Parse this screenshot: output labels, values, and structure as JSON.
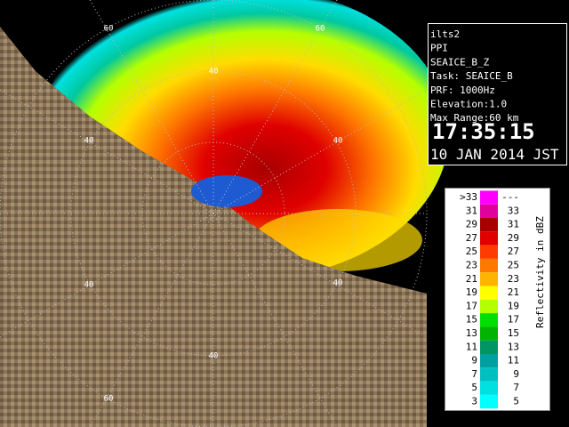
{
  "info": {
    "lines": [
      "ilts2",
      "PPI",
      "SEAICE_B_Z",
      "Task: SEAICE_B",
      "PRF: 1000Hz",
      "Elevation:1.0",
      "Max Range:60 km"
    ],
    "time": "17:35:15",
    "date": "10 JAN 2014 JST"
  },
  "range_labels": [
    "60",
    "60",
    "40",
    "40",
    "40",
    "40",
    "40",
    "40",
    "60"
  ],
  "legend": {
    "title": "Reflectivity in dBZ",
    "rows": [
      {
        "low": ">33",
        "high": "---",
        "color": "#ff00ff"
      },
      {
        "low": "31",
        "high": "33",
        "color": "#e0009c"
      },
      {
        "low": "29",
        "high": "31",
        "color": "#a80000"
      },
      {
        "low": "27",
        "high": "29",
        "color": "#e00000"
      },
      {
        "low": "25",
        "high": "27",
        "color": "#ff3c00"
      },
      {
        "low": "23",
        "high": "25",
        "color": "#ff7800"
      },
      {
        "low": "21",
        "high": "23",
        "color": "#ffb400"
      },
      {
        "low": "19",
        "high": "21",
        "color": "#ffff00"
      },
      {
        "low": "17",
        "high": "19",
        "color": "#b4ff00"
      },
      {
        "low": "15",
        "high": "17",
        "color": "#00e000"
      },
      {
        "low": "13",
        "high": "15",
        "color": "#00b400"
      },
      {
        "low": "11",
        "high": "13",
        "color": "#009664"
      },
      {
        "low": "9",
        "high": "11",
        "color": "#00a0a0"
      },
      {
        "low": "7",
        "high": "9",
        "color": "#00c0c0"
      },
      {
        "low": "5",
        "high": "7",
        "color": "#00e0e0"
      },
      {
        "low": "3",
        "high": "5",
        "color": "#00ffff"
      }
    ]
  }
}
